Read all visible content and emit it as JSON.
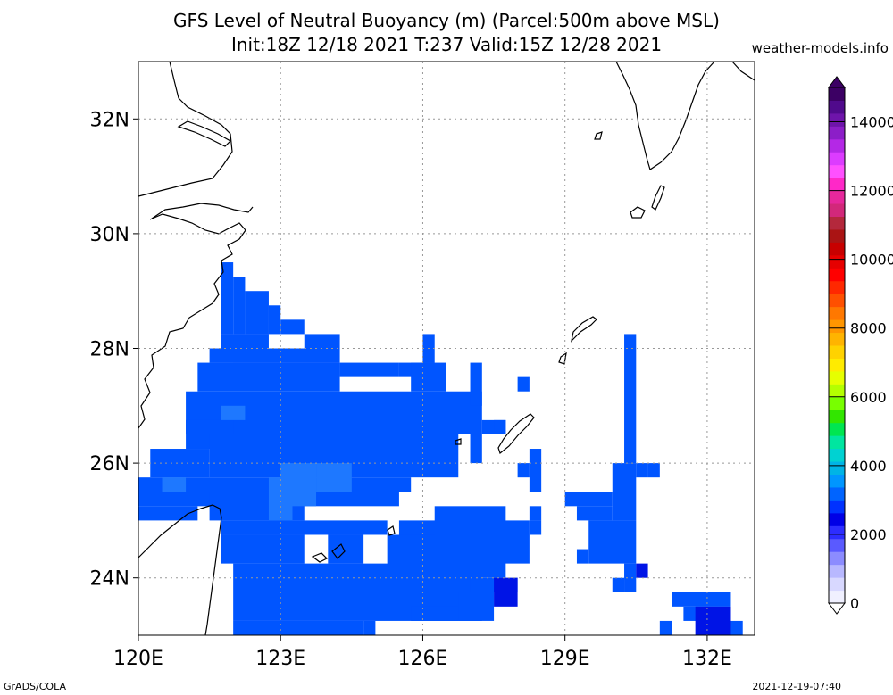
{
  "chart_data": {
    "type": "heatmap",
    "title": "GFS Level of Neutral Buoyancy (m) (Parcel:500m above MSL)",
    "subtitle": "Init:18Z 12/18 2021 T:237 Valid:15Z 12/28 2021",
    "watermark": "weather-models.info",
    "footer_left": "GrADS/COLA",
    "footer_right": "2021-12-19-07:40",
    "x_range_lon": [
      120,
      133
    ],
    "y_range_lat": [
      23,
      33
    ],
    "x_ticks": [
      120,
      123,
      126,
      129,
      132
    ],
    "x_tick_labels": [
      "120E",
      "123E",
      "126E",
      "129E",
      "132E"
    ],
    "y_ticks": [
      24,
      26,
      28,
      30,
      32
    ],
    "y_tick_labels": [
      "24N",
      "26N",
      "28N",
      "30N",
      "32N"
    ],
    "grid": true,
    "grid_resolution_deg": 0.25,
    "fill_color": "#0055ff",
    "fill_color_light": "#1e78ff",
    "fill_color_dark": "#0014e6",
    "filled_cells": [
      [
        121.75,
        28.25,
        122.0,
        29.5
      ],
      [
        122.0,
        28.25,
        122.25,
        29.25
      ],
      [
        122.25,
        28.25,
        122.75,
        29.0
      ],
      [
        122.75,
        28.25,
        123.0,
        28.75
      ],
      [
        123.0,
        28.25,
        123.5,
        28.5
      ],
      [
        121.75,
        28.25,
        122.75,
        28.0
      ],
      [
        121.5,
        28.0,
        123.0,
        27.75
      ],
      [
        121.25,
        27.75,
        124.25,
        27.25
      ],
      [
        122.0,
        28.0,
        124.25,
        27.75
      ],
      [
        123.5,
        28.25,
        124.25,
        28.0
      ],
      [
        124.25,
        27.75,
        125.5,
        27.5
      ],
      [
        125.5,
        27.75,
        126.25,
        27.5
      ],
      [
        126.0,
        28.25,
        126.25,
        27.75
      ],
      [
        125.75,
        27.75,
        126.5,
        27.25
      ],
      [
        126.5,
        27.25,
        127.25,
        26.5
      ],
      [
        127.0,
        27.75,
        127.25,
        27.0
      ],
      [
        127.25,
        26.75,
        127.75,
        26.5
      ],
      [
        121.0,
        27.25,
        126.5,
        26.25
      ],
      [
        121.0,
        26.75,
        122.0,
        26.5
      ],
      [
        121.5,
        26.5,
        126.75,
        25.75
      ],
      [
        120.25,
        26.25,
        121.5,
        25.75
      ],
      [
        120.0,
        25.75,
        125.75,
        25.5
      ],
      [
        120.0,
        25.5,
        125.5,
        25.25
      ],
      [
        120.0,
        25.25,
        121.25,
        25.0
      ],
      [
        121.5,
        25.5,
        123.5,
        25.0
      ],
      [
        121.75,
        25.0,
        125.25,
        24.75
      ],
      [
        121.75,
        24.75,
        123.5,
        24.25
      ],
      [
        122.0,
        24.25,
        127.25,
        23.25
      ],
      [
        124.0,
        24.75,
        124.75,
        24.25
      ],
      [
        125.5,
        25.0,
        128.25,
        24.25
      ],
      [
        125.25,
        24.75,
        127.75,
        24.0
      ],
      [
        126.25,
        25.25,
        127.75,
        24.75
      ],
      [
        127.0,
        24.0,
        128.0,
        23.75
      ],
      [
        126.75,
        23.75,
        127.5,
        23.25
      ],
      [
        122.0,
        23.25,
        124.75,
        23.0
      ],
      [
        124.75,
        23.25,
        125.0,
        23.0
      ],
      [
        125.75,
        23.5,
        126.75,
        23.25
      ],
      [
        128.0,
        26.0,
        128.25,
        25.75
      ],
      [
        128.25,
        26.25,
        128.5,
        25.5
      ],
      [
        128.25,
        25.25,
        128.5,
        25.0
      ],
      [
        128.25,
        25.0,
        128.5,
        24.75
      ],
      [
        129.0,
        25.5,
        130.0,
        25.25
      ],
      [
        129.25,
        25.25,
        130.0,
        25.0
      ],
      [
        129.5,
        25.0,
        130.5,
        24.25
      ],
      [
        129.25,
        24.5,
        129.5,
        24.25
      ],
      [
        130.0,
        26.0,
        130.5,
        25.5
      ],
      [
        130.0,
        25.5,
        130.5,
        25.0
      ],
      [
        130.5,
        26.0,
        130.75,
        25.75
      ],
      [
        130.75,
        26.0,
        131.0,
        25.75
      ],
      [
        130.25,
        28.25,
        130.5,
        26.0
      ],
      [
        130.25,
        24.25,
        130.5,
        23.75
      ],
      [
        130.0,
        24.0,
        130.25,
        23.75
      ],
      [
        131.25,
        23.75,
        132.5,
        23.5
      ],
      [
        131.5,
        23.5,
        132.5,
        23.25
      ],
      [
        132.0,
        23.25,
        132.5,
        23.0
      ],
      [
        132.5,
        23.25,
        132.75,
        23.0
      ],
      [
        131.0,
        23.25,
        131.25,
        23.0
      ],
      [
        128.0,
        27.5,
        128.25,
        27.25
      ],
      [
        127.0,
        26.5,
        127.25,
        26.0
      ],
      [
        127.5,
        26.75,
        127.75,
        26.5
      ]
    ],
    "light_patches": [
      [
        121.75,
        27.0,
        122.25,
        26.75
      ],
      [
        123.0,
        26.0,
        123.75,
        25.25
      ],
      [
        123.75,
        26.0,
        124.5,
        25.5
      ],
      [
        122.75,
        25.75,
        123.25,
        25.0
      ],
      [
        120.5,
        25.75,
        121.0,
        25.5
      ]
    ],
    "dark_patches": [
      [
        127.5,
        24.0,
        128.0,
        23.5
      ],
      [
        130.5,
        24.25,
        130.75,
        24.0
      ],
      [
        131.75,
        23.5,
        132.5,
        23.0
      ]
    ],
    "colorbar": {
      "min": 0,
      "max": 15000,
      "tick_values": [
        0,
        2000,
        4000,
        6000,
        8000,
        10000,
        12000,
        14000
      ],
      "tick_labels": [
        "0",
        "2000",
        "4000",
        "6000",
        "8000",
        "10000",
        "12000",
        "14000"
      ],
      "colors": [
        "#f0f0ff",
        "#d8d8ff",
        "#b8b8ff",
        "#8c8cff",
        "#5a5aff",
        "#2d2dff",
        "#0000e6",
        "#0032ff",
        "#0064ff",
        "#0096ff",
        "#00b4e6",
        "#00d2d2",
        "#00e6a0",
        "#00e650",
        "#32e600",
        "#78ff00",
        "#b4ff00",
        "#e6ff00",
        "#ffeb00",
        "#ffd200",
        "#ffb400",
        "#ff9600",
        "#ff7800",
        "#ff5000",
        "#ff2800",
        "#ff0000",
        "#e60000",
        "#c80000",
        "#aa1414",
        "#b4283c",
        "#d2287a",
        "#e6289c",
        "#ff28c8",
        "#ff50ff",
        "#dc3cff",
        "#b428e6",
        "#8c1ec8",
        "#6e14aa",
        "#500a8c",
        "#3c0064"
      ]
    }
  }
}
